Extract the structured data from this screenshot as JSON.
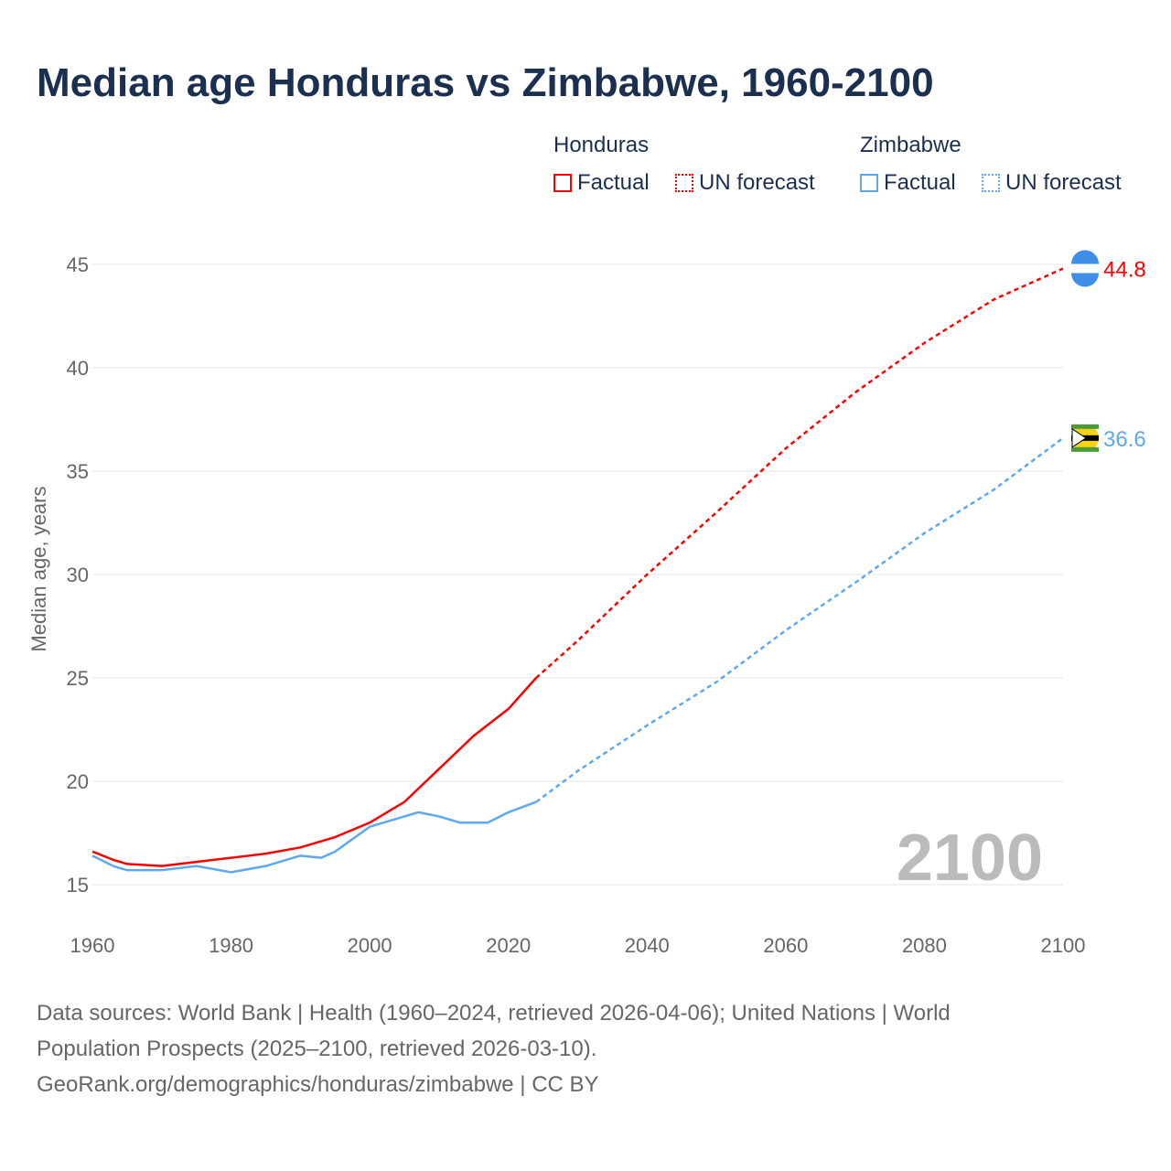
{
  "title": "Median age Honduras vs Zimbabwe, 1960-2100",
  "legend": {
    "honduras": "Honduras",
    "zimbabwe": "Zimbabwe",
    "factual": "Factual",
    "forecast": "UN forecast"
  },
  "colors": {
    "honduras": "#ff0000",
    "zimbabwe": "#5da8ee"
  },
  "year_watermark": "2100",
  "footer": {
    "line1": "Data sources: World Bank | Health (1960–2024, retrieved 2026-04-06); United Nations | World",
    "line2": "Population Prospects (2025–2100, retrieved 2026-03-10).",
    "line3": "GeoRank.org/demographics/honduras/zimbabwe | CC BY"
  },
  "chart_data": {
    "type": "line",
    "title": "Median age Honduras vs Zimbabwe, 1960-2100",
    "xlabel": "",
    "ylabel": "Median age, years",
    "xlim": [
      1960,
      2100
    ],
    "ylim": [
      15,
      45
    ],
    "xticks": [
      "1960",
      "1980",
      "2000",
      "2020",
      "2040",
      "2060",
      "2080",
      "2100"
    ],
    "yticks": [
      "15",
      "20",
      "25",
      "30",
      "35",
      "40",
      "45"
    ],
    "series": [
      {
        "name": "Honduras",
        "kind": "factual",
        "end_label": "44.8",
        "x": [
          1960,
          1963,
          1965,
          1970,
          1975,
          1980,
          1985,
          1990,
          1995,
          2000,
          2005,
          2010,
          2015,
          2020,
          2024
        ],
        "y": [
          16.6,
          16.2,
          16.0,
          15.9,
          16.1,
          16.3,
          16.5,
          16.8,
          17.3,
          18.0,
          19.0,
          20.6,
          22.2,
          23.5,
          25.0
        ]
      },
      {
        "name": "Honduras",
        "kind": "UN forecast",
        "x": [
          2024,
          2030,
          2040,
          2050,
          2060,
          2070,
          2080,
          2090,
          2100
        ],
        "y": [
          25.0,
          26.8,
          30.0,
          33.0,
          36.1,
          38.8,
          41.2,
          43.3,
          44.8
        ]
      },
      {
        "name": "Zimbabwe",
        "kind": "factual",
        "end_label": "36.6",
        "x": [
          1960,
          1963,
          1965,
          1970,
          1975,
          1980,
          1985,
          1990,
          1993,
          1995,
          2000,
          2005,
          2007,
          2010,
          2013,
          2017,
          2020,
          2024
        ],
        "y": [
          16.4,
          15.9,
          15.7,
          15.7,
          15.9,
          15.6,
          15.9,
          16.4,
          16.3,
          16.6,
          17.8,
          18.3,
          18.5,
          18.3,
          18.0,
          18.0,
          18.5,
          19.0
        ]
      },
      {
        "name": "Zimbabwe",
        "kind": "UN forecast",
        "x": [
          2024,
          2030,
          2040,
          2050,
          2060,
          2070,
          2080,
          2090,
          2100
        ],
        "y": [
          19.0,
          20.5,
          22.7,
          24.8,
          27.3,
          29.6,
          32.0,
          34.1,
          36.6
        ]
      }
    ]
  }
}
